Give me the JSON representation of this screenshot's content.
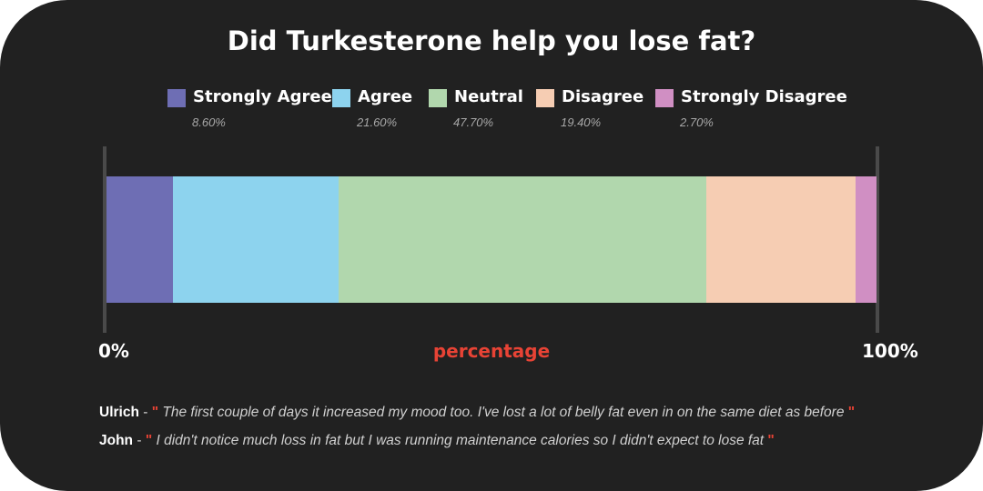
{
  "chart_data": {
    "type": "bar",
    "orientation": "horizontal-stacked",
    "title": "Did Turkesterone help you lose fat?",
    "xlabel": "percentage",
    "xlim": [
      0,
      100
    ],
    "tick_labels": [
      "0%",
      "100%"
    ],
    "legend_placement": "top",
    "series": [
      {
        "name": "Strongly Agree",
        "value": 8.6,
        "label": "8.60%",
        "color": "#6e6eb4"
      },
      {
        "name": "Agree",
        "value": 21.6,
        "label": "21.60%",
        "color": "#8dd3ee"
      },
      {
        "name": "Neutral",
        "value": 47.7,
        "label": "47.70%",
        "color": "#b1d7ad"
      },
      {
        "name": "Disagree",
        "value": 19.4,
        "label": "19.40%",
        "color": "#f6cdb3"
      },
      {
        "name": "Strongly Disagree",
        "value": 2.7,
        "label": "2.70%",
        "color": "#d08fc3"
      }
    ]
  },
  "colors": {
    "background": "#212121",
    "accent": "#e84335"
  },
  "quotes": [
    {
      "name": "Ulrich",
      "separator": " - ",
      "open": "\"",
      "text": " The first couple of days it increased my mood too. I've lost a lot of belly fat even in on the same diet as before ",
      "close": "\""
    },
    {
      "name": "John",
      "separator": " - ",
      "open": "\"",
      "text": " I didn't notice much loss in fat but I was running maintenance calories so I didn't expect to lose fat ",
      "close": "\""
    }
  ]
}
